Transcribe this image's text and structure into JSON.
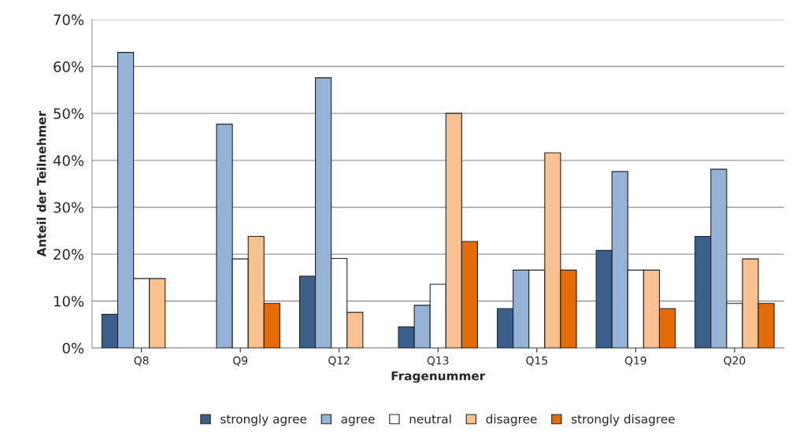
{
  "chart_data": {
    "type": "bar",
    "xlabel": "Fragenummer",
    "ylabel": "Anteil der Teilnehmer",
    "categories": [
      "Q8",
      "Q9",
      "Q12",
      "Q13",
      "Q15",
      "Q19",
      "Q20"
    ],
    "series": [
      {
        "name": "strongly agree",
        "color": "#3a5f8b",
        "values": [
          7.2,
          null,
          15.3,
          4.5,
          8.4,
          20.8,
          23.8
        ]
      },
      {
        "name": "agree",
        "color": "#95b3d7",
        "values": [
          63,
          47.7,
          57.6,
          9.1,
          16.6,
          37.6,
          38.1
        ]
      },
      {
        "name": "neutral",
        "color": "#ffffff",
        "values": [
          14.8,
          19.0,
          19.1,
          13.6,
          16.6,
          16.6,
          9.5
        ]
      },
      {
        "name": "disagree",
        "color": "#f9c090",
        "values": [
          14.8,
          23.8,
          7.6,
          50,
          41.6,
          16.6,
          19.0
        ]
      },
      {
        "name": "strongly disagree",
        "color": "#e36c09",
        "values": [
          null,
          9.5,
          null,
          22.7,
          16.6,
          8.4,
          9.5
        ]
      }
    ],
    "ylim": [
      0,
      70
    ],
    "yticks": [
      {
        "value": 0,
        "label": "0%"
      },
      {
        "value": 10,
        "label": "10%"
      },
      {
        "value": 20,
        "label": "20%"
      },
      {
        "value": 30,
        "label": "30%"
      },
      {
        "value": 40,
        "label": "40%"
      },
      {
        "value": 50,
        "label": "50%"
      },
      {
        "value": 60,
        "label": "60%"
      },
      {
        "value": 70,
        "label": "70%"
      }
    ],
    "grid": "y",
    "legend": "bottom"
  }
}
